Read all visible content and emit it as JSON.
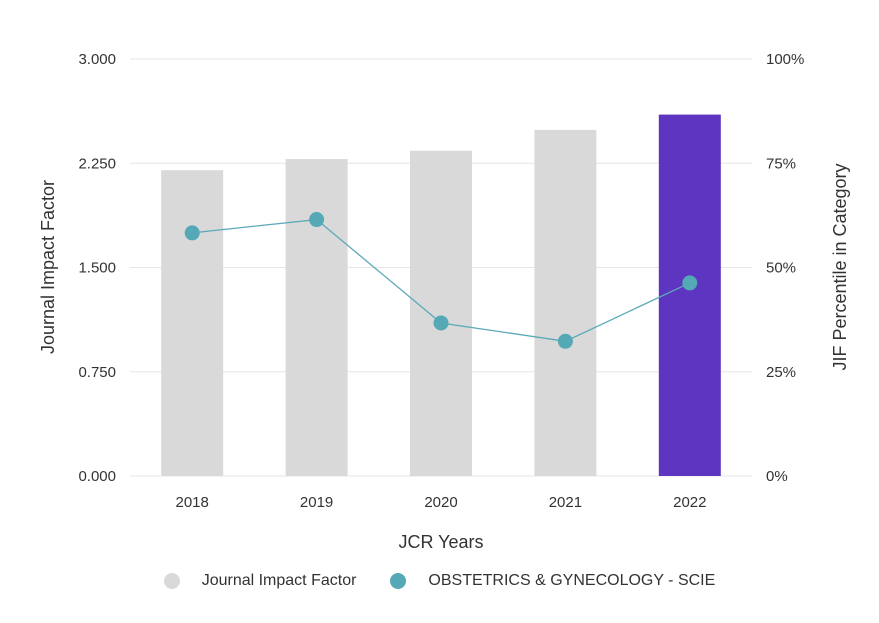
{
  "colors": {
    "bar_default": "#d9d9d9",
    "bar_highlight": "#5d35c1",
    "line": "#5aa9b8",
    "point": "#55a8b6",
    "grid": "#e6e6e6",
    "text": "#333333",
    "legend_bar": "#d9d9d9",
    "legend_line": "#55a8b6"
  },
  "chart_data": {
    "type": "bar",
    "xlabel": "JCR Years",
    "ylabel": "Journal Impact Factor",
    "y2label": "JIF Percentile in Category",
    "ylim": [
      0,
      3.0
    ],
    "y2lim": [
      0,
      100
    ],
    "yticks": [
      "0.000",
      "0.750",
      "1.500",
      "2.250",
      "3.000"
    ],
    "y2ticks": [
      "0%",
      "25%",
      "50%",
      "75%",
      "100%"
    ],
    "categories": [
      "2018",
      "2019",
      "2020",
      "2021",
      "2022"
    ],
    "highlight_category": "2022",
    "grid": true,
    "legend_position": "bottom",
    "series": [
      {
        "name": "Journal Impact Factor",
        "type": "bar",
        "axis": "left",
        "values": [
          2.2,
          2.28,
          2.34,
          2.49,
          2.6
        ]
      },
      {
        "name": "OBSTETRICS & GYNECOLOGY - SCIE",
        "type": "line",
        "axis": "right",
        "values": [
          58.3,
          61.5,
          36.7,
          32.3,
          46.3
        ]
      }
    ]
  }
}
